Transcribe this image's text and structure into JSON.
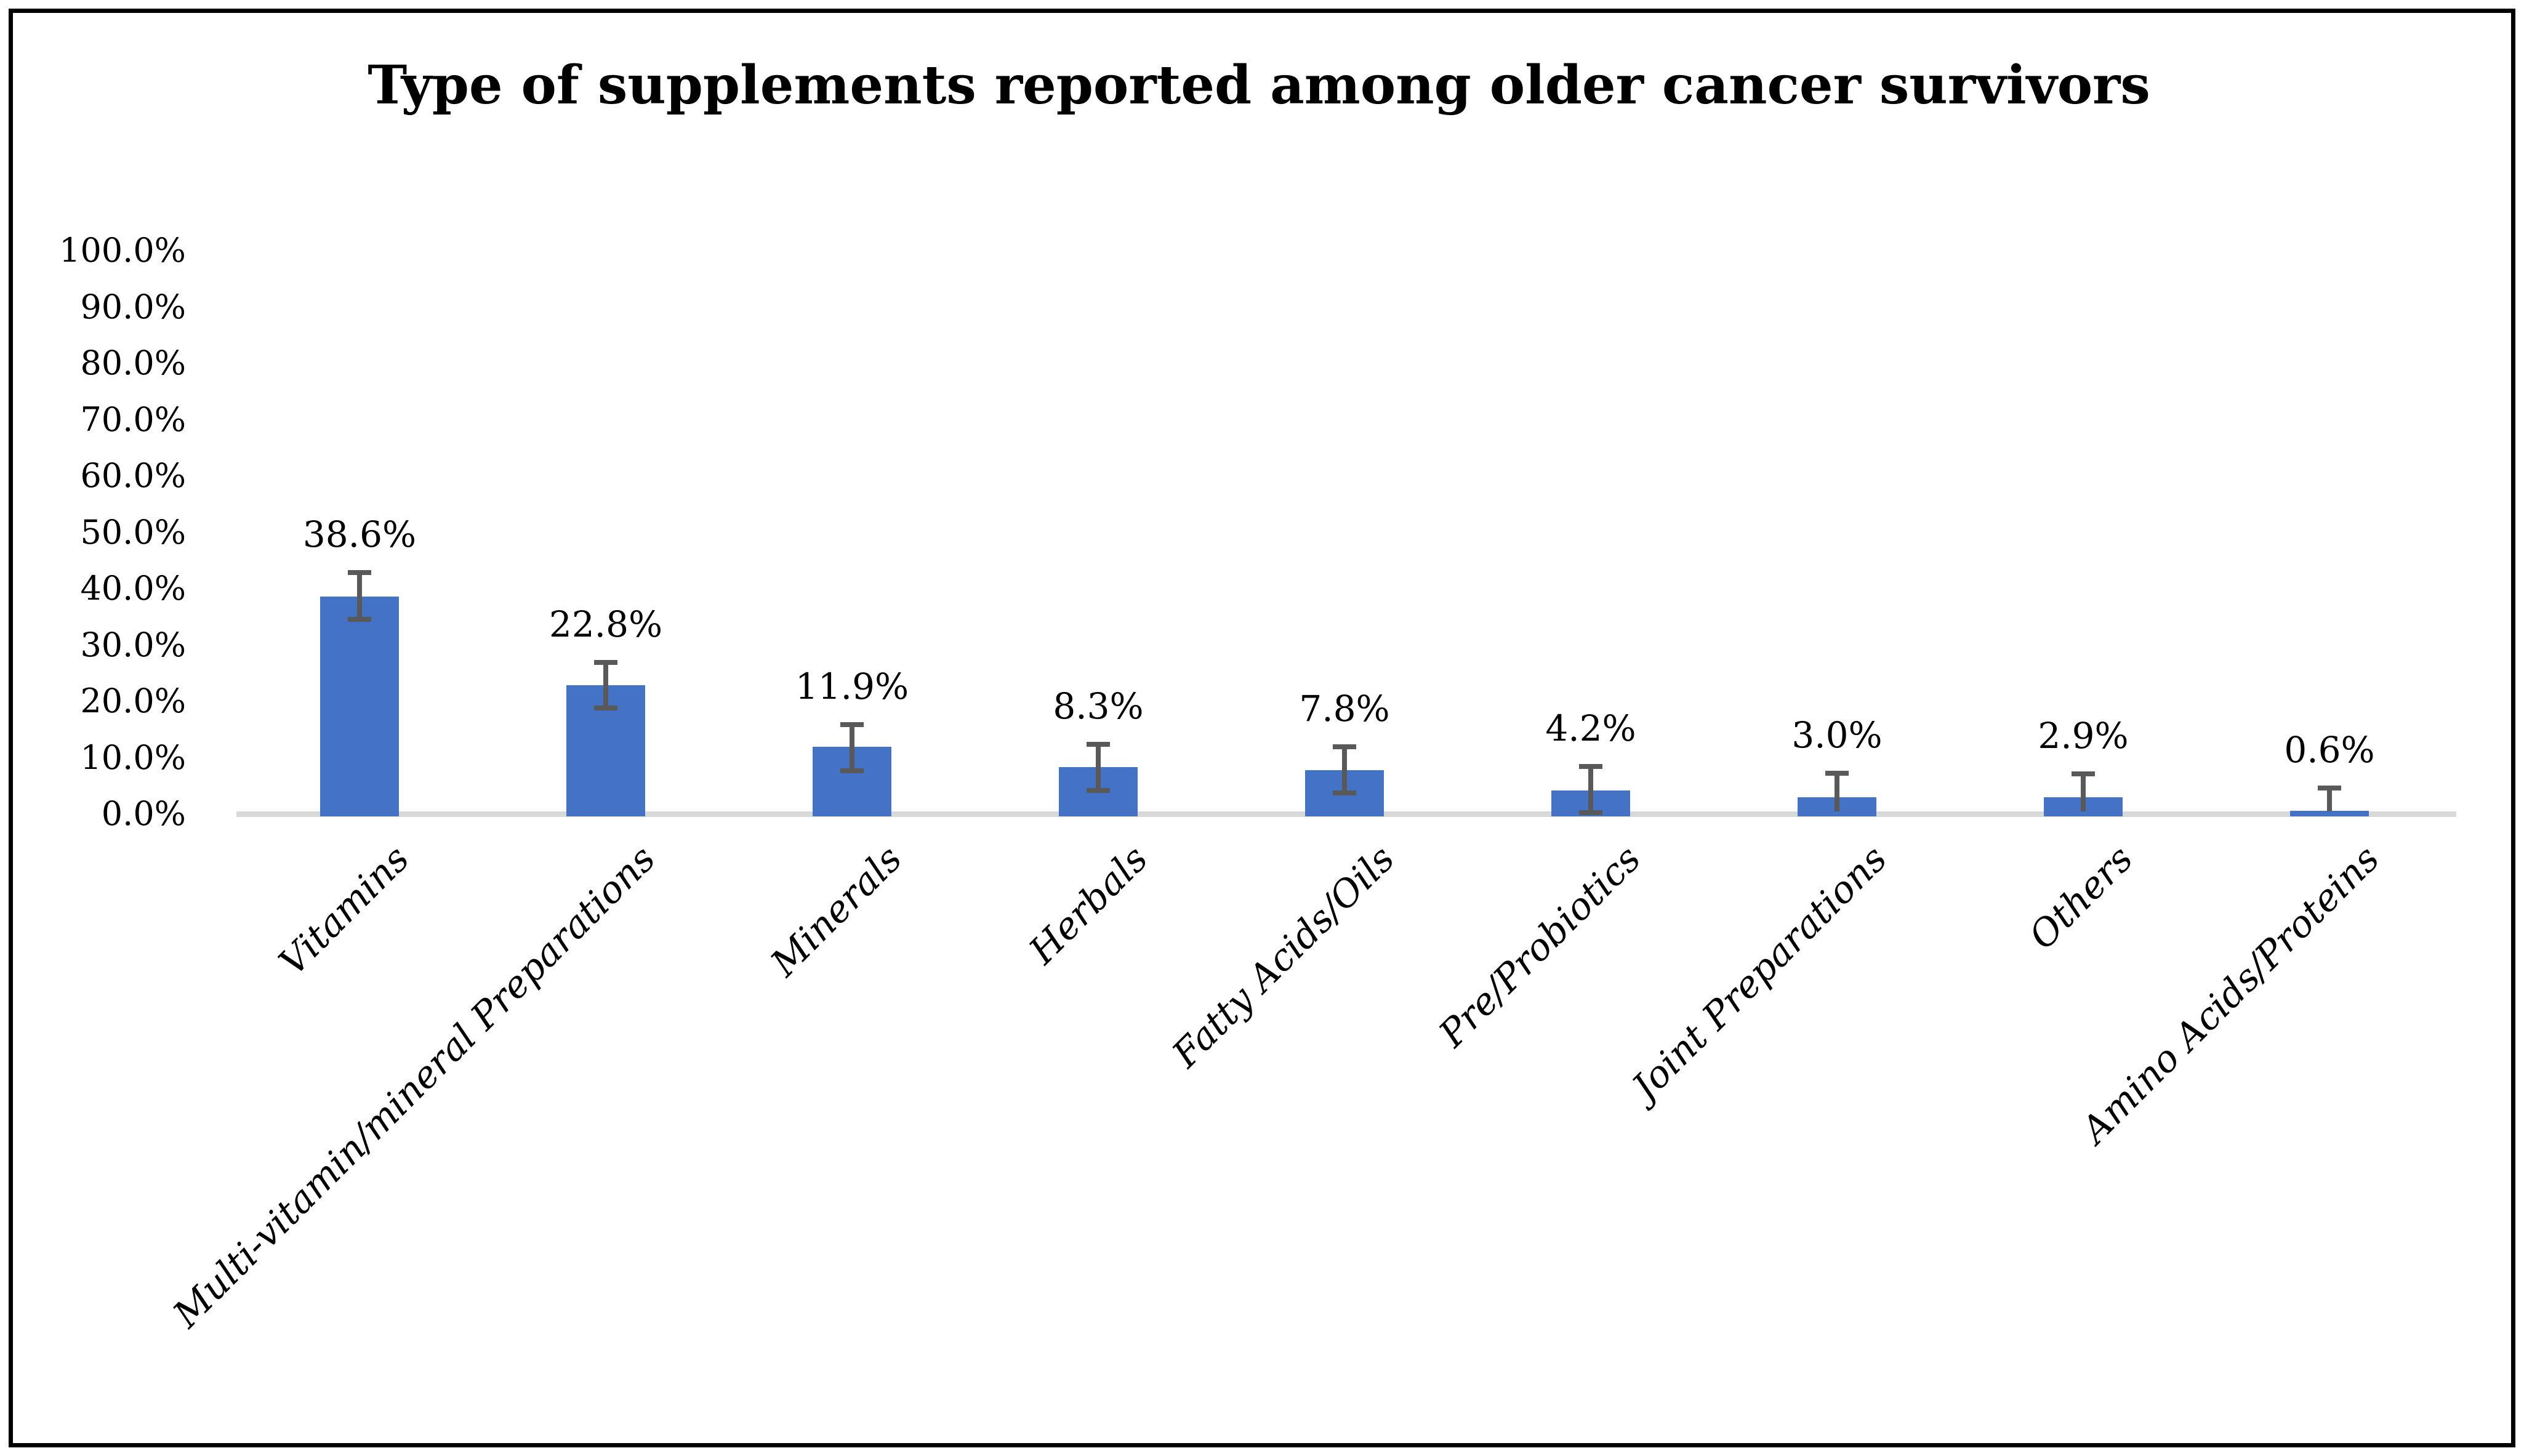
{
  "title": "Type of supplements reported among older cancer survivors",
  "colors": {
    "bar": "#4472C4",
    "error_bar": "#595959",
    "axis_line": "#D9D9D9",
    "text": "#000000",
    "background": "#FFFFFF",
    "frame_border": "#000000"
  },
  "y_axis": {
    "tick_labels": [
      "100.0%",
      "90.0%",
      "80.0%",
      "70.0%",
      "60.0%",
      "50.0%",
      "40.0%",
      "30.0%",
      "20.0%",
      "10.0%",
      "0.0%"
    ],
    "min": 0,
    "max": 100,
    "step": 10
  },
  "chart_data": {
    "type": "bar",
    "title": "Type of supplements reported among older cancer survivors",
    "categories": [
      "Vitamins",
      "Multi-vitamin/mineral Preparations",
      "Minerals",
      "Herbals",
      "Fatty Acids/Oils",
      "Pre/Probiotics",
      "Joint Preparations",
      "Others",
      "Amino Acids/Proteins"
    ],
    "values": [
      38.6,
      22.8,
      11.9,
      8.3,
      7.8,
      4.2,
      3.0,
      2.9,
      0.6
    ],
    "data_labels": [
      "38.6%",
      "22.8%",
      "11.9%",
      "8.3%",
      "7.8%",
      "4.2%",
      "3.0%",
      "2.9%",
      "0.6%"
    ],
    "error_bars": {
      "upper": [
        42.8,
        26.9,
        15.8,
        12.4,
        11.9,
        8.4,
        7.2,
        7.1,
        4.6
      ],
      "lower": [
        34.5,
        18.8,
        7.7,
        4.2,
        3.7,
        0.2,
        null,
        null,
        null
      ],
      "note": "lower whiskers of the three smallest bars are clipped at the 0% axis (no bottom cap shown)"
    },
    "xlabel": "",
    "ylabel": "",
    "ylim": [
      0,
      100
    ],
    "grid": false,
    "legend": false,
    "bar_color": "#4472C4",
    "error_bar_color": "#595959",
    "category_label_rotation_deg": 45
  }
}
